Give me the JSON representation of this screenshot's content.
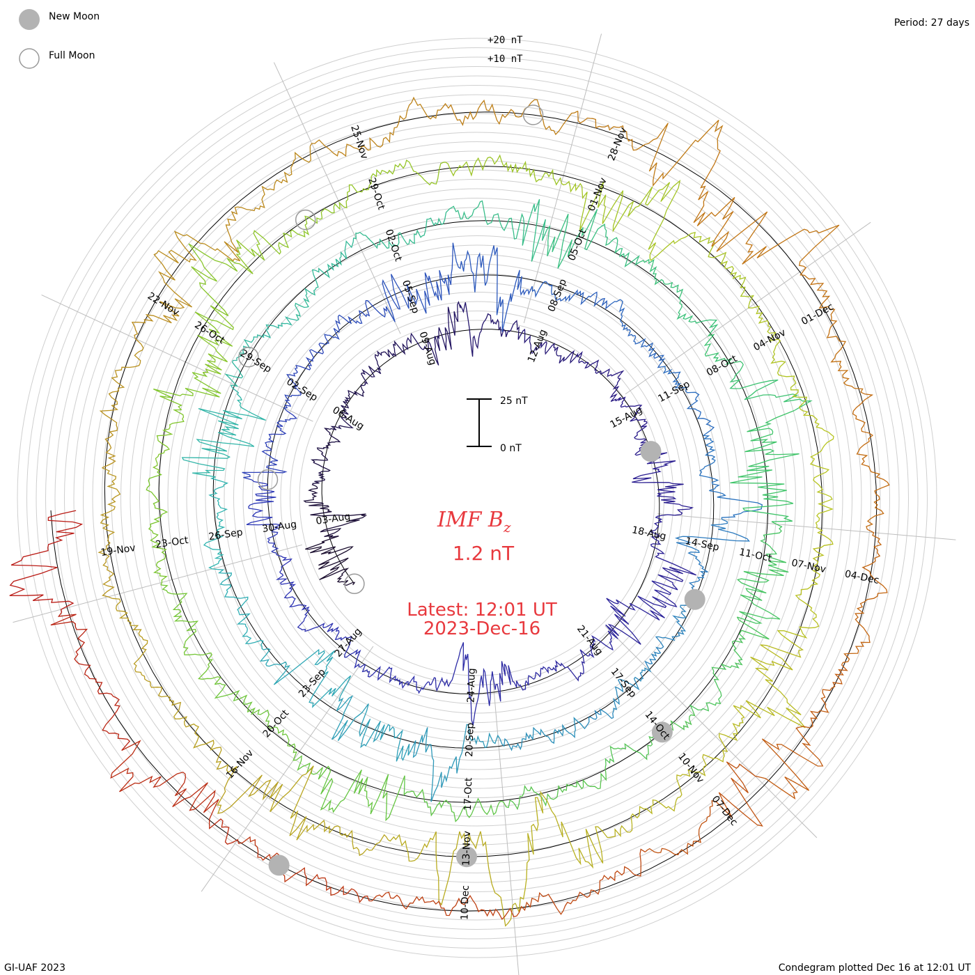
{
  "legend": {
    "new_moon": "New Moon",
    "full_moon": "Full Moon",
    "new_moon_color": "#b3b3b3"
  },
  "period": "Period: 27 days",
  "footer_left": "GI-UAF 2023",
  "footer_right": "Condegram plotted Dec 16 at 12:01 UT",
  "scale": {
    "top": "25 nT",
    "bottom": "0 nT"
  },
  "ring_scale": {
    "plus20": "+20 nT",
    "plus10": "+10 nT"
  },
  "center": {
    "quantity": "IMF B",
    "subscript": "z",
    "value": "1.2 nT",
    "latest_time": "Latest: 12:01 UT",
    "latest_date": "2023-Dec-16"
  },
  "chart_data": {
    "type": "line",
    "title": "IMF Bz",
    "unit": "nT",
    "period_days": 27,
    "latest_value": 1.2,
    "date_labels": [
      {
        "text": "03-Aug"
      },
      {
        "text": "06-Aug"
      },
      {
        "text": "09-Aug"
      },
      {
        "text": "12-Aug"
      },
      {
        "text": "15-Aug"
      },
      {
        "text": "18-Aug"
      },
      {
        "text": "21-Aug"
      },
      {
        "text": "24-Aug"
      },
      {
        "text": "27-Aug"
      },
      {
        "text": "30-Aug"
      },
      {
        "text": "02-Sep"
      },
      {
        "text": "05-Sep"
      },
      {
        "text": "08-Sep"
      },
      {
        "text": "11-Sep"
      },
      {
        "text": "14-Sep"
      },
      {
        "text": "17-Sep"
      },
      {
        "text": "20-Sep"
      },
      {
        "text": "23-Sep"
      },
      {
        "text": "26-Sep"
      },
      {
        "text": "29-Sep"
      },
      {
        "text": "02-Oct"
      },
      {
        "text": "05-Oct"
      },
      {
        "text": "08-Oct"
      },
      {
        "text": "11-Oct"
      },
      {
        "text": "14-Oct"
      },
      {
        "text": "17-Oct"
      },
      {
        "text": "20-Oct"
      },
      {
        "text": "23-Oct"
      },
      {
        "text": "26-Oct"
      },
      {
        "text": "29-Oct"
      },
      {
        "text": "01-Nov"
      },
      {
        "text": "04-Nov"
      },
      {
        "text": "07-Nov"
      },
      {
        "text": "10-Nov"
      },
      {
        "text": "13-Nov"
      },
      {
        "text": "16-Nov"
      },
      {
        "text": "19-Nov"
      },
      {
        "text": "22-Nov"
      },
      {
        "text": "25-Nov"
      },
      {
        "text": "28-Nov"
      },
      {
        "text": "01-Dec"
      },
      {
        "text": "04-Dec"
      },
      {
        "text": "07-Dec"
      },
      {
        "text": "10-Dec"
      }
    ],
    "series": [
      {
        "start": "2023-08-01",
        "color": "#1a0d2e",
        "amp": 5
      },
      {
        "start": "2023-08-28",
        "color": "#2e35b5",
        "amp": 5
      },
      {
        "start": "2023-09-24",
        "color": "#2fb3b3",
        "amp": 6
      },
      {
        "start": "2023-10-21",
        "color": "#7ac52e",
        "amp": 6
      },
      {
        "start": "2023-11-17",
        "color": "#b89420",
        "amp": 6
      },
      {
        "start": "2023-12-14",
        "color": "#b81414",
        "amp": 6
      }
    ],
    "series_gradient": [
      "#1a0d2e",
      "#2a1b8c",
      "#2e35b5",
      "#2a6fc0",
      "#2fb3b3",
      "#3ec46a",
      "#7ac52e",
      "#b8c420",
      "#b89420",
      "#c46a10",
      "#b81414"
    ],
    "new_moons": [
      "2023-08-16",
      "2023-09-15",
      "2023-10-14",
      "2023-11-13",
      "2023-12-12"
    ],
    "full_moons": [
      "2023-08-01",
      "2023-08-31",
      "2023-09-29",
      "2023-10-28",
      "2023-11-27"
    ]
  }
}
